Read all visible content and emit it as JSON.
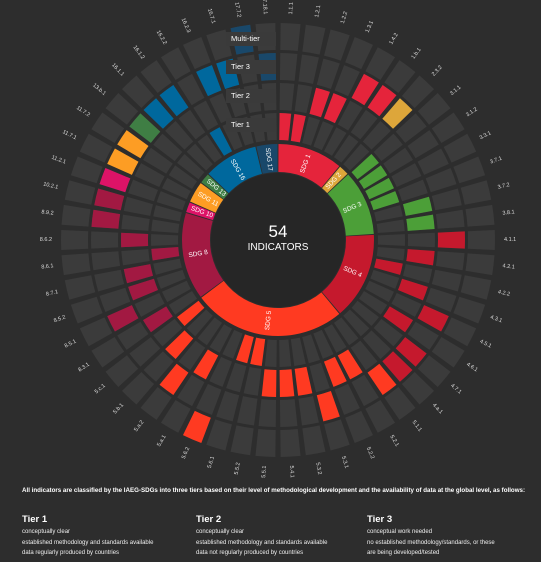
{
  "center": {
    "count": "54",
    "label": "INDICATORS"
  },
  "tier_key": [
    "Multi-tier",
    "Tier 3",
    "Tier 2",
    "Tier 1"
  ],
  "chart_data": {
    "type": "radial-bar",
    "rings": [
      "Tier 1",
      "Tier 2",
      "Tier 3",
      "Multi-tier"
    ],
    "goals": [
      {
        "name": "SDG 1",
        "color": "#e5243b"
      },
      {
        "name": "SDG 2",
        "color": "#dda63a"
      },
      {
        "name": "SDG 3",
        "color": "#4c9f38"
      },
      {
        "name": "SDG 4",
        "color": "#c5192d"
      },
      {
        "name": "SDG 5",
        "color": "#ff3a21"
      },
      {
        "name": "SDG 8",
        "color": "#a21942"
      },
      {
        "name": "SDG 10",
        "color": "#dd1367"
      },
      {
        "name": "SDG 11",
        "color": "#fd9d24"
      },
      {
        "name": "SDG 13",
        "color": "#3f7e44"
      },
      {
        "name": "SDG 16",
        "color": "#00689d"
      },
      {
        "name": "SDG 17",
        "color": "#19486a"
      }
    ],
    "indicators": [
      {
        "label": "1.1.1",
        "goal": 0,
        "tier": 1
      },
      {
        "label": "1.2.1",
        "goal": 0,
        "tier": 1
      },
      {
        "label": "1.2.2",
        "goal": 0,
        "tier": 2
      },
      {
        "label": "1.3.1",
        "goal": 0,
        "tier": 2
      },
      {
        "label": "1.4.2",
        "goal": 0,
        "tier": 3
      },
      {
        "label": "1.b.1",
        "goal": 0,
        "tier": 3
      },
      {
        "label": "2.3.2",
        "goal": 1,
        "tier": 3
      },
      {
        "label": "3.1.1",
        "goal": 2,
        "tier": 1
      },
      {
        "label": "3.1.2",
        "goal": 2,
        "tier": 1
      },
      {
        "label": "3.3.1",
        "goal": 2,
        "tier": 1
      },
      {
        "label": "3.7.1",
        "goal": 2,
        "tier": 1
      },
      {
        "label": "3.7.2",
        "goal": 2,
        "tier": 2
      },
      {
        "label": "3.8.1",
        "goal": 2,
        "tier": 2
      },
      {
        "label": "4.1.1",
        "goal": 3,
        "tier": 3
      },
      {
        "label": "4.2.1",
        "goal": 3,
        "tier": 2
      },
      {
        "label": "4.2.2",
        "goal": 3,
        "tier": 1
      },
      {
        "label": "4.3.1",
        "goal": 3,
        "tier": 2
      },
      {
        "label": "4.5.1",
        "goal": 3,
        "tier": 3
      },
      {
        "label": "4.6.1",
        "goal": 3,
        "tier": 2
      },
      {
        "label": "4.7.1",
        "goal": 3,
        "tier": 3
      },
      {
        "label": "4.a.1",
        "goal": 3,
        "tier": 3
      },
      {
        "label": "5.1.1",
        "goal": 4,
        "tier": 3
      },
      {
        "label": "5.2.1",
        "goal": 4,
        "tier": 2
      },
      {
        "label": "5.2.2",
        "goal": 4,
        "tier": 2
      },
      {
        "label": "5.3.1",
        "goal": 4,
        "tier": 3
      },
      {
        "label": "5.3.2",
        "goal": 4,
        "tier": 2
      },
      {
        "label": "5.4.1",
        "goal": 4,
        "tier": 2
      },
      {
        "label": "5.5.1",
        "goal": 4,
        "tier": 2
      },
      {
        "label": "5.5.2",
        "goal": 4,
        "tier": 1
      },
      {
        "label": "5.6.1",
        "goal": 4,
        "tier": 1
      },
      {
        "label": "5.6.2",
        "goal": 4,
        "tier": 4
      },
      {
        "label": "5.a.1",
        "goal": 4,
        "tier": 2
      },
      {
        "label": "5.a.2",
        "goal": 4,
        "tier": 3
      },
      {
        "label": "5.b.1",
        "goal": 4,
        "tier": 2
      },
      {
        "label": "5.c.1",
        "goal": 4,
        "tier": 1
      },
      {
        "label": "8.3.1",
        "goal": 5,
        "tier": 2
      },
      {
        "label": "8.5.1",
        "goal": 5,
        "tier": 3
      },
      {
        "label": "8.5.2",
        "goal": 5,
        "tier": 2
      },
      {
        "label": "8.7.1",
        "goal": 5,
        "tier": 2
      },
      {
        "label": "8.6.1",
        "goal": 5,
        "tier": 1
      },
      {
        "label": "8.6.2",
        "goal": 5,
        "tier": 2
      },
      {
        "label": "8.9.2",
        "goal": 5,
        "tier": 3
      },
      {
        "label": "10.2.1",
        "goal": 5,
        "tier": 3
      },
      {
        "label": "11.2.1",
        "goal": 6,
        "tier": 3
      },
      {
        "label": "11.7.1",
        "goal": 7,
        "tier": 3
      },
      {
        "label": "11.7.2",
        "goal": 7,
        "tier": 3
      },
      {
        "label": "13.b.1",
        "goal": 8,
        "tier": 3
      },
      {
        "label": "16.1.1",
        "goal": 9,
        "tier": 3
      },
      {
        "label": "16.1.2",
        "goal": 9,
        "tier": 3
      },
      {
        "label": "16.2.2",
        "goal": 9,
        "tier": 1
      },
      {
        "label": "16.2.3",
        "goal": 9,
        "tier": 3
      },
      {
        "label": "16.7.1",
        "goal": 9,
        "tier": 3
      },
      {
        "label": "17.7.2",
        "goal": 10,
        "tier": 4
      },
      {
        "label": "17.18.1",
        "goal": 10,
        "tier": 3
      }
    ]
  },
  "legend": {
    "intro": "All indicators are classified by the IAEG-SDGs into three tiers based on their level of methodological development and the availability of data at the global level, as follows:",
    "tiers": [
      {
        "title": "Tier 1",
        "lines": [
          "conceptually clear",
          "established methodology and standards available",
          "data regularly produced by countries"
        ]
      },
      {
        "title": "Tier 2",
        "lines": [
          "conceptually clear",
          "established methodology and standards available",
          "data not regularly produced by countries"
        ]
      },
      {
        "title": "Tier 3",
        "lines": [
          "conceptual work needed",
          "no established methodology/standards, or these",
          "are being developed/tested"
        ]
      }
    ]
  }
}
